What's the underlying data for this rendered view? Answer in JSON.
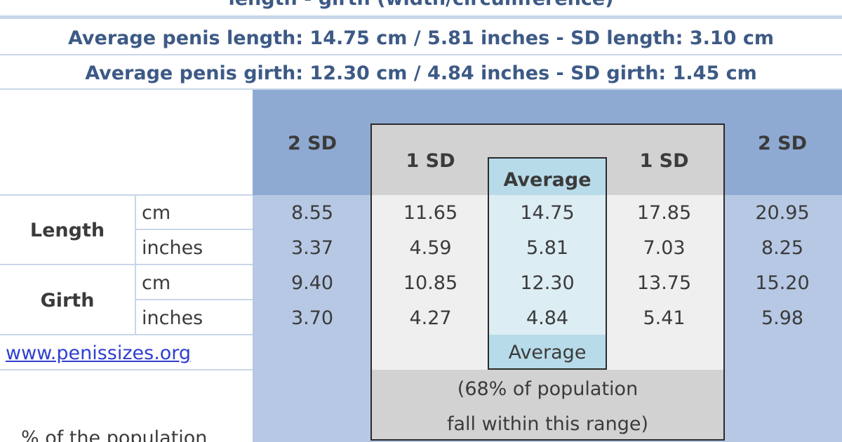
{
  "header": {
    "title": "length - girth (width/circumference)",
    "lines": [
      "Average penis length: 14.75 cm / 5.81 inches - SD length: 3.10 cm",
      "Average penis girth: 12.30 cm / 4.84 inches - SD girth: 1.45 cm"
    ]
  },
  "table": {
    "columns": [
      "2 SD",
      "1 SD",
      "Average",
      "1 SD",
      "2 SD"
    ],
    "groups": [
      {
        "label": "Length",
        "rows": [
          {
            "unit": "cm",
            "values": [
              "8.55",
              "11.65",
              "14.75",
              "17.85",
              "20.95"
            ]
          },
          {
            "unit": "inches",
            "values": [
              "3.37",
              "4.59",
              "5.81",
              "7.03",
              "8.25"
            ]
          }
        ]
      },
      {
        "label": "Girth",
        "rows": [
          {
            "unit": "cm",
            "values": [
              "9.40",
              "10.85",
              "12.30",
              "13.75",
              "15.20"
            ]
          },
          {
            "unit": "inches",
            "values": [
              "3.70",
              "4.27",
              "4.84",
              "5.41",
              "5.98"
            ]
          }
        ]
      }
    ]
  },
  "source": "www.penissizes.org",
  "average_footer": "Average",
  "note": [
    "(68% of population",
    "fall within this range)"
  ],
  "population_label": "% of the population"
}
